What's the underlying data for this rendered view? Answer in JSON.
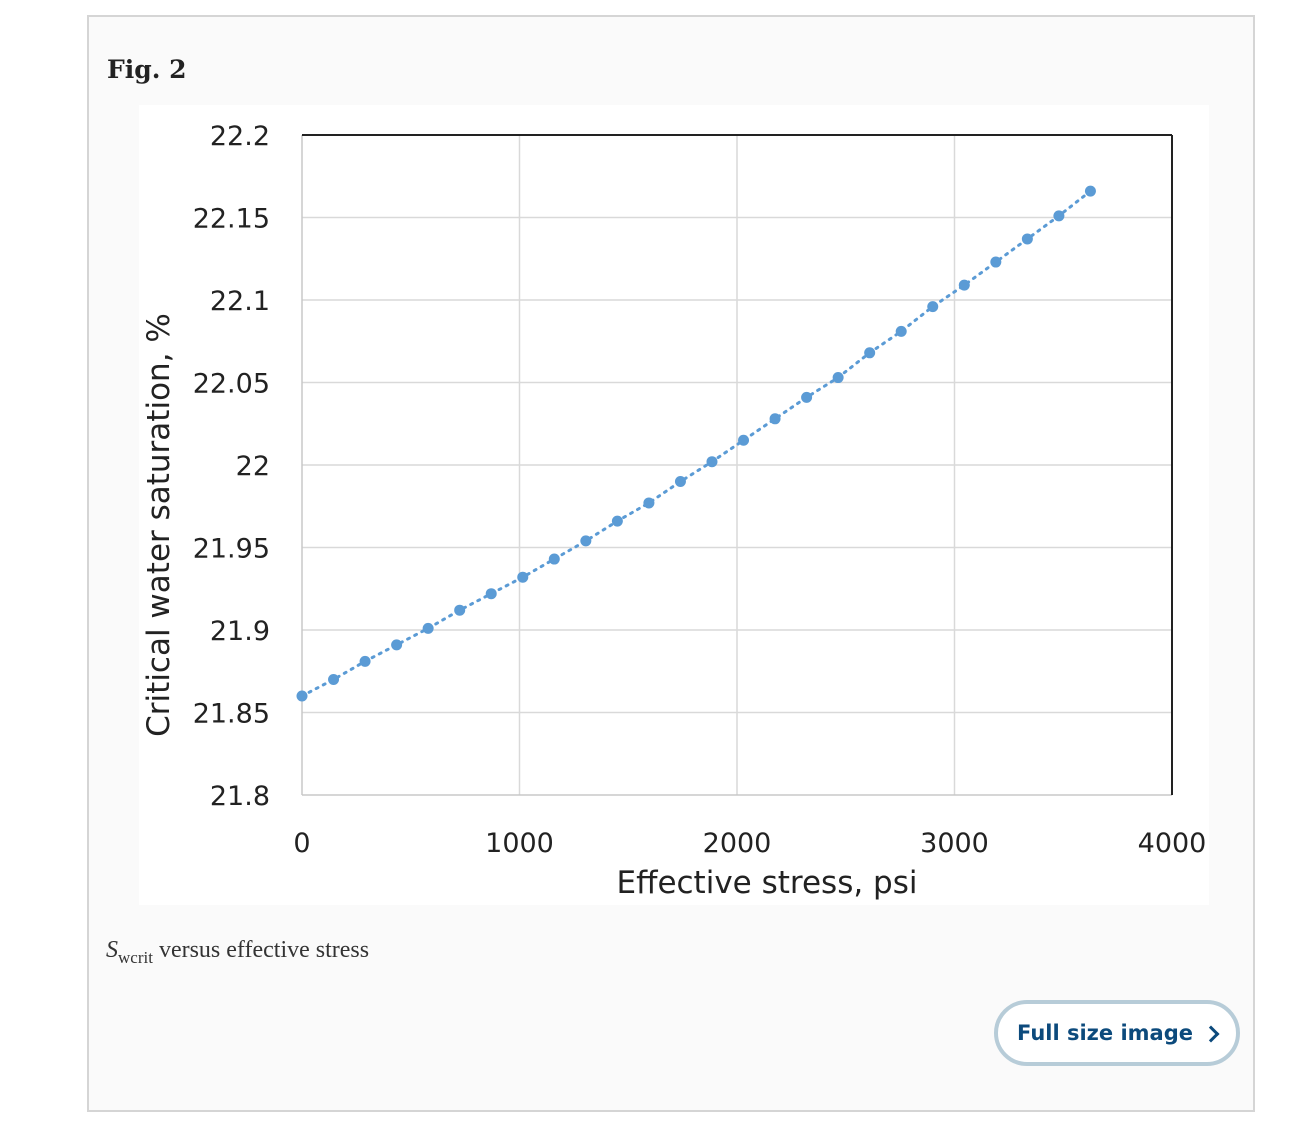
{
  "figure": {
    "label": "Fig. 2",
    "caption_symbol": "S",
    "caption_subscript": "wcrit",
    "caption_text": " versus effective stress",
    "full_size_label": "Full size image"
  },
  "colors": {
    "series": "#5b9bd5",
    "grid": "#d9d9d9",
    "axis": "#222222",
    "button_border": "#b7ccd8",
    "button_text": "#0c4a7c"
  },
  "chart_data": {
    "type": "scatter",
    "title": "",
    "xlabel": "Effective stress, psi",
    "ylabel": "Critical water saturation, %",
    "xlim": [
      0,
      4000
    ],
    "ylim": [
      21.8,
      22.2
    ],
    "xticks": [
      0,
      1000,
      2000,
      3000,
      4000
    ],
    "xtick_labels": [
      "0",
      "1000",
      "2000",
      "3000",
      "4000"
    ],
    "yticks": [
      21.8,
      21.85,
      21.9,
      21.95,
      22,
      22.05,
      22.1,
      22.15,
      22.2
    ],
    "ytick_labels": [
      "21.8",
      "21.85",
      "21.9",
      "21.95",
      "22",
      "22.05",
      "22.1",
      "22.15",
      "22.2"
    ],
    "grid": true,
    "legend": false,
    "series": [
      {
        "line": "dotted",
        "x": [
          0,
          145,
          290,
          435,
          580,
          725,
          870,
          1015,
          1160,
          1305,
          1450,
          1595,
          1740,
          1885,
          2030,
          2175,
          2320,
          2465,
          2610,
          2755,
          2900,
          3045,
          3190,
          3335,
          3480,
          3625
        ],
        "y": [
          21.86,
          21.87,
          21.881,
          21.891,
          21.901,
          21.912,
          21.922,
          21.932,
          21.943,
          21.954,
          21.966,
          21.977,
          21.99,
          22.002,
          22.015,
          22.028,
          22.041,
          22.053,
          22.068,
          22.081,
          22.096,
          22.109,
          22.123,
          22.137,
          22.151,
          22.166
        ]
      }
    ]
  }
}
